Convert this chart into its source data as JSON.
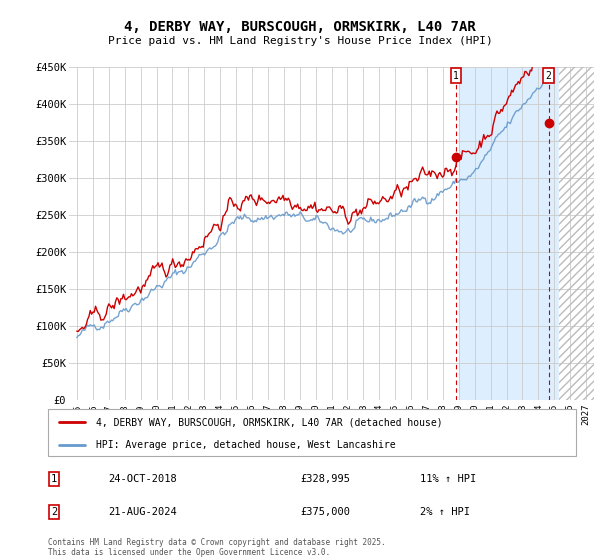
{
  "title": "4, DERBY WAY, BURSCOUGH, ORMSKIRK, L40 7AR",
  "subtitle": "Price paid vs. HM Land Registry's House Price Index (HPI)",
  "ylabel_ticks": [
    "£0",
    "£50K",
    "£100K",
    "£150K",
    "£200K",
    "£250K",
    "£300K",
    "£350K",
    "£400K",
    "£450K"
  ],
  "ylim": [
    0,
    450000
  ],
  "xlim_start": 1994.5,
  "xlim_end": 2027.5,
  "red_line_color": "#cc0000",
  "blue_line_color": "#6699cc",
  "marker1_x": 2018.82,
  "marker2_x": 2024.64,
  "shade_start": 2019.0,
  "shade_end": 2025.3,
  "hatch_start": 2025.3,
  "hatch_end": 2027.5,
  "marker1_label": "1",
  "marker2_label": "2",
  "marker1_y": 328995,
  "marker2_y": 375000,
  "legend_red": "4, DERBY WAY, BURSCOUGH, ORMSKIRK, L40 7AR (detached house)",
  "legend_blue": "HPI: Average price, detached house, West Lancashire",
  "annotation1_date": "24-OCT-2018",
  "annotation1_price": "£328,995",
  "annotation1_hpi": "11% ↑ HPI",
  "annotation2_date": "21-AUG-2024",
  "annotation2_price": "£375,000",
  "annotation2_hpi": "2% ↑ HPI",
  "footer": "Contains HM Land Registry data © Crown copyright and database right 2025.\nThis data is licensed under the Open Government Licence v3.0.",
  "shaded_region_color": "#ddeeff",
  "background_color": "#ffffff",
  "grid_color": "#cccccc"
}
